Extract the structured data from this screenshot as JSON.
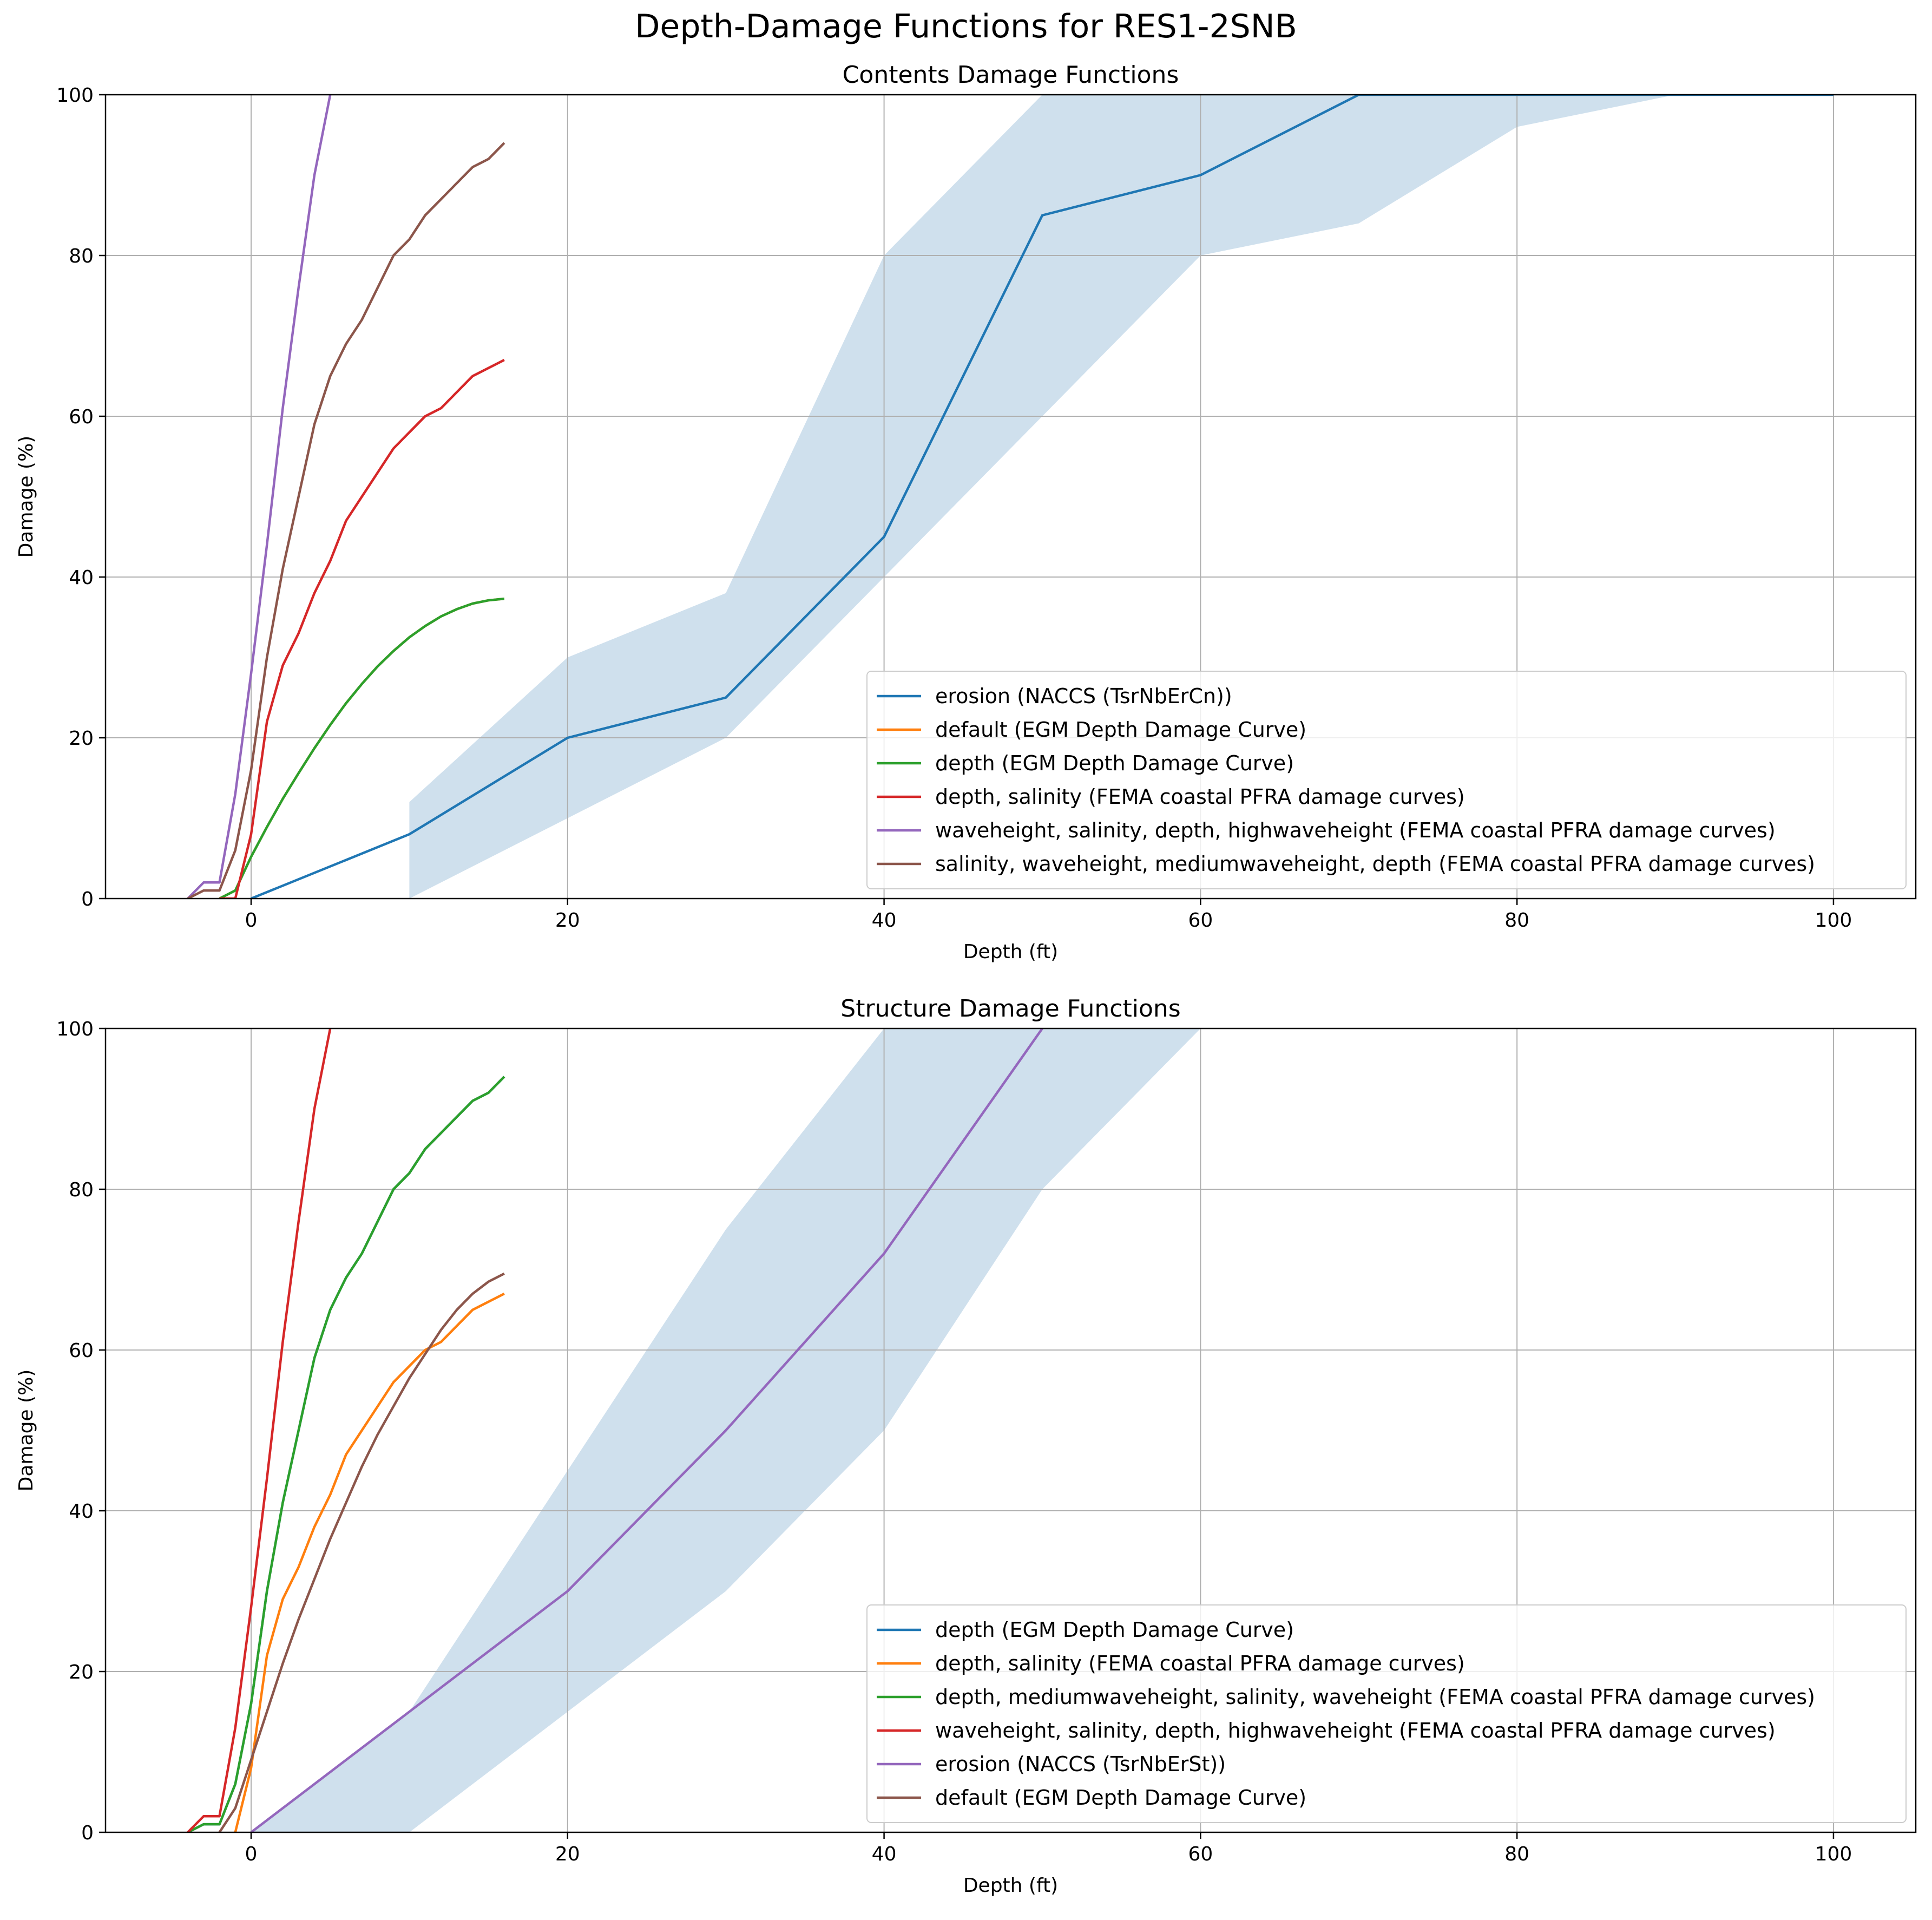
{
  "chart_data": {
    "title": "Depth-Damage Functions for RES1-2SNB",
    "charts": [
      {
        "type": "line",
        "title": "Contents Damage Functions",
        "xlabel": "Depth (ft)",
        "ylabel": "Damage (%)",
        "xlim": [
          -9.2,
          105.2
        ],
        "ylim": [
          0,
          100
        ],
        "xticks": [
          0,
          20,
          40,
          60,
          80,
          100
        ],
        "yticks": [
          0,
          20,
          40,
          60,
          80,
          100
        ],
        "grid": true,
        "legend_position": "lower-right",
        "band": {
          "x": [
            10,
            20,
            30,
            40,
            50,
            60,
            70,
            80,
            90,
            100
          ],
          "lower": [
            0,
            10,
            20,
            40,
            60,
            80,
            84,
            96,
            100,
            100
          ],
          "upper": [
            12,
            30,
            38,
            80,
            100,
            100,
            100,
            100,
            100,
            100
          ],
          "color": "#cfe0ed"
        },
        "series": [
          {
            "name": "erosion (NACCS (TsrNbErCn))",
            "color": "#1f77b4",
            "x": [
              0,
              10,
              20,
              30,
              40,
              50,
              60,
              70,
              80,
              90,
              100
            ],
            "y": [
              0,
              8,
              20,
              25,
              45,
              85,
              90,
              100,
              100,
              100,
              100
            ]
          },
          {
            "name": "default (EGM Depth Damage Curve)",
            "color": "#ff7f0e",
            "x": [
              -2,
              -1,
              0,
              1,
              2,
              3,
              4,
              5,
              6,
              7,
              8,
              9,
              10,
              11,
              12,
              13,
              14,
              15,
              16
            ],
            "y": [
              0,
              1,
              5.2,
              8.9,
              12.4,
              15.6,
              18.7,
              21.6,
              24.3,
              26.7,
              28.9,
              30.8,
              32.5,
              33.9,
              35.1,
              36,
              36.7,
              37.1,
              37.3
            ]
          },
          {
            "name": "depth (EGM Depth Damage Curve)",
            "color": "#2ca02c",
            "x": [
              -2,
              -1,
              0,
              1,
              2,
              3,
              4,
              5,
              6,
              7,
              8,
              9,
              10,
              11,
              12,
              13,
              14,
              15,
              16
            ],
            "y": [
              0,
              1,
              5.2,
              8.9,
              12.4,
              15.6,
              18.7,
              21.6,
              24.3,
              26.7,
              28.9,
              30.8,
              32.5,
              33.9,
              35.1,
              36,
              36.7,
              37.1,
              37.3
            ]
          },
          {
            "name": "depth, salinity (FEMA coastal PFRA damage curves)",
            "color": "#d62728",
            "x": [
              -2,
              -1,
              0,
              1,
              2,
              3,
              4,
              5,
              6,
              7,
              8,
              9,
              10,
              11,
              12,
              13,
              14,
              15,
              16
            ],
            "y": [
              0,
              0,
              8,
              22,
              29,
              33,
              38,
              42,
              47,
              50,
              53,
              56,
              58,
              60,
              61,
              63,
              65,
              66,
              67
            ]
          },
          {
            "name": "waveheight, salinity, depth, highwaveheight (FEMA coastal PFRA damage curves)",
            "color": "#9467bd",
            "x": [
              -4,
              -3,
              -2,
              -1,
              0,
              1,
              2,
              3,
              4,
              5
            ],
            "y": [
              0,
              2,
              2,
              13,
              28,
              44,
              61,
              76,
              90,
              100
            ]
          },
          {
            "name": "salinity, waveheight, mediumwaveheight, depth (FEMA coastal PFRA damage curves)",
            "color": "#8c564b",
            "x": [
              -4,
              -3,
              -2,
              -1,
              0,
              1,
              2,
              3,
              4,
              5,
              6,
              7,
              8,
              9,
              10,
              11,
              12,
              13,
              14,
              15,
              16
            ],
            "y": [
              0,
              1,
              1,
              6,
              16,
              30,
              41,
              50,
              59,
              65,
              69,
              72,
              76,
              80,
              82,
              85,
              87,
              89,
              91,
              92,
              94
            ]
          }
        ]
      },
      {
        "type": "line",
        "title": "Structure Damage Functions",
        "xlabel": "Depth (ft)",
        "ylabel": "Damage (%)",
        "xlim": [
          -9.2,
          105.2
        ],
        "ylim": [
          0,
          100
        ],
        "xticks": [
          0,
          20,
          40,
          60,
          80,
          100
        ],
        "yticks": [
          0,
          20,
          40,
          60,
          80,
          100
        ],
        "grid": true,
        "legend_position": "lower-right",
        "band": {
          "x": [
            0,
            10,
            20,
            30,
            40,
            50,
            60
          ],
          "lower": [
            0,
            0,
            15,
            30,
            50,
            80,
            100
          ],
          "upper": [
            0,
            15,
            45,
            75,
            100,
            100,
            100
          ],
          "color": "#cfe0ed"
        },
        "series": [
          {
            "name": "depth (EGM Depth Damage Curve)",
            "color": "#1f77b4",
            "x": [
              -4,
              -3,
              -2,
              -1,
              0,
              1,
              2,
              3,
              4,
              5,
              6,
              7,
              8,
              9,
              10,
              11,
              12,
              13,
              14,
              15,
              16
            ],
            "y": [
              0,
              1,
              1,
              6,
              16,
              30,
              41,
              50,
              59,
              65,
              69,
              72,
              76,
              80,
              82,
              85,
              87,
              89,
              91,
              92,
              94
            ]
          },
          {
            "name": "depth, salinity (FEMA coastal PFRA damage curves)",
            "color": "#ff7f0e",
            "x": [
              -1,
              0,
              1,
              2,
              3,
              4,
              5,
              6,
              7,
              8,
              9,
              10,
              11,
              12,
              13,
              14,
              15,
              16
            ],
            "y": [
              0,
              8,
              22,
              29,
              33,
              38,
              42,
              47,
              50,
              53,
              56,
              58,
              60,
              61,
              63,
              65,
              66,
              67
            ]
          },
          {
            "name": "depth, mediumwaveheight, salinity, waveheight (FEMA coastal PFRA damage curves)",
            "color": "#2ca02c",
            "x": [
              -4,
              -3,
              -2,
              -1,
              0,
              1,
              2,
              3,
              4,
              5,
              6,
              7,
              8,
              9,
              10,
              11,
              12,
              13,
              14,
              15,
              16
            ],
            "y": [
              0,
              1,
              1,
              6,
              16,
              30,
              41,
              50,
              59,
              65,
              69,
              72,
              76,
              80,
              82,
              85,
              87,
              89,
              91,
              92,
              94
            ]
          },
          {
            "name": "waveheight, salinity, depth, highwaveheight (FEMA coastal PFRA damage curves)",
            "color": "#d62728",
            "x": [
              -4,
              -3,
              -2,
              -1,
              0,
              1,
              2,
              3,
              4,
              5
            ],
            "y": [
              0,
              2,
              2,
              13,
              28,
              44,
              61,
              76,
              90,
              100
            ]
          },
          {
            "name": "erosion (NACCS (TsrNbErSt))",
            "color": "#9467bd",
            "x": [
              0,
              10,
              20,
              30,
              40,
              50
            ],
            "y": [
              0,
              15,
              30,
              50,
              72,
              100
            ]
          },
          {
            "name": "default (EGM Depth Damage Curve)",
            "color": "#8c564b",
            "x": [
              -2,
              -1,
              0,
              1,
              2,
              3,
              4,
              5,
              6,
              7,
              8,
              9,
              10,
              11,
              12,
              13,
              14,
              15,
              16
            ],
            "y": [
              0,
              3,
              9,
              15,
              21,
              26.5,
              31.5,
              36.5,
              41,
              45.5,
              49.5,
              53,
              56.5,
              59.5,
              62.5,
              65,
              67,
              68.5,
              69.5
            ]
          }
        ]
      }
    ]
  }
}
